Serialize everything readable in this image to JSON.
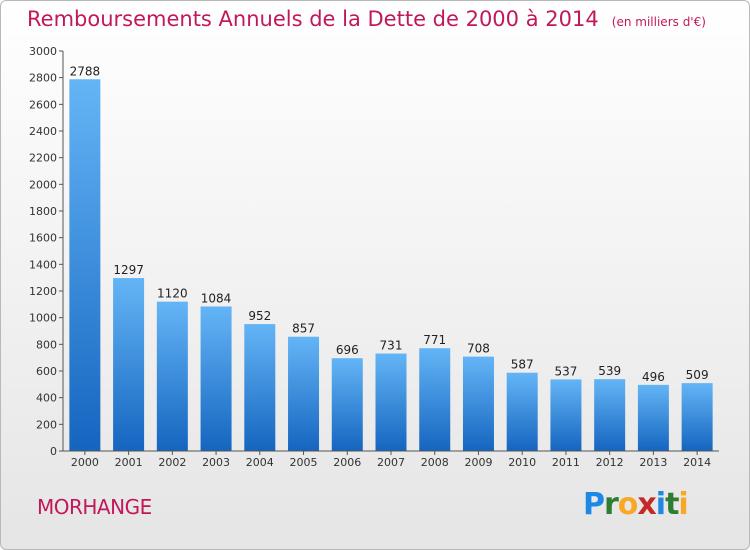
{
  "title": "Remboursements Annuels de la Dette de 2000 à 2014",
  "unit_label": "(en milliers d'€)",
  "commune": "MORHANGE",
  "logo": {
    "letters": [
      "P",
      "r",
      "o",
      "x",
      "i",
      "t",
      "i"
    ],
    "colors": [
      "#1e88e5",
      "#2e7d32",
      "#f9a825",
      "#c62828",
      "#1e88e5",
      "#2e7d32",
      "#f9a825"
    ]
  },
  "colors": {
    "bar_light": "#64b5f6",
    "bar_dark": "#1565c0",
    "accent": "#c2185b"
  },
  "chart_data": {
    "type": "bar",
    "title": "Remboursements Annuels de la Dette de 2000 à 2014",
    "categories": [
      "2000",
      "2001",
      "2002",
      "2003",
      "2004",
      "2005",
      "2006",
      "2007",
      "2008",
      "2009",
      "2010",
      "2011",
      "2012",
      "2013",
      "2014"
    ],
    "values": [
      2788,
      1297,
      1120,
      1084,
      952,
      857,
      696,
      731,
      771,
      708,
      587,
      537,
      539,
      496,
      509
    ],
    "ylim": [
      0,
      3000
    ],
    "yticks": [
      0,
      200,
      400,
      600,
      800,
      1000,
      1200,
      1400,
      1600,
      1800,
      2000,
      2200,
      2400,
      2600,
      2800,
      3000
    ],
    "grid": false,
    "legend": "none"
  }
}
